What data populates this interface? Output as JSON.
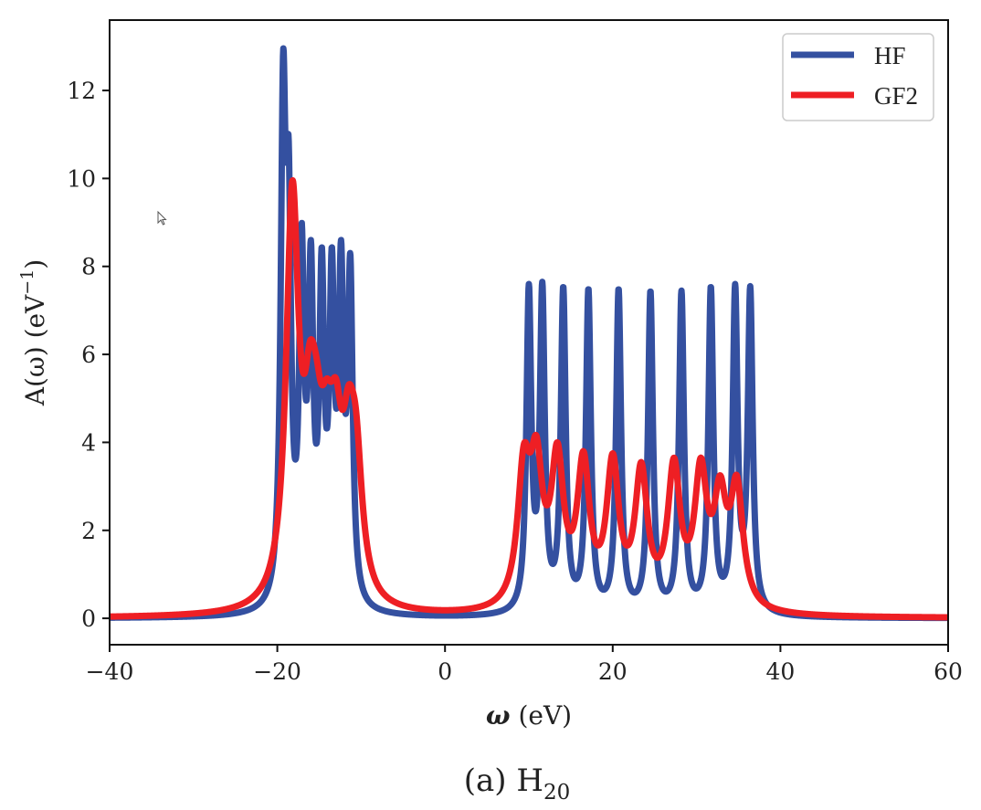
{
  "chart_data": {
    "type": "line",
    "title": "",
    "caption": {
      "prefix": "(a) H",
      "subscript": "20"
    },
    "xlabel": {
      "symbol": "ω",
      "unit": " (eV)"
    },
    "ylabel": {
      "text": "A(ω) (eV",
      "superscript": "−1",
      "close": ")"
    },
    "xlim": [
      -40,
      60
    ],
    "ylim": [
      -0.6,
      13.6
    ],
    "xticks": [
      -40,
      -20,
      0,
      20,
      40,
      60
    ],
    "xtick_labels": [
      "−40",
      "−20",
      "0",
      "20",
      "40",
      "60"
    ],
    "yticks": [
      0,
      2,
      4,
      6,
      8,
      10,
      12
    ],
    "ytick_labels": [
      "0",
      "2",
      "4",
      "6",
      "8",
      "10",
      "12"
    ],
    "grid": false,
    "legend_position": "top-right",
    "series": [
      {
        "name": "HF",
        "color": "#3450a0",
        "broadening_eV": 0.35,
        "peaks": [
          {
            "omega": -19.3,
            "height": 12.9
          },
          {
            "omega": -18.65,
            "height": 10.9
          },
          {
            "omega": -17.1,
            "height": 9.0
          },
          {
            "omega": -16.0,
            "height": 8.6
          },
          {
            "omega": -14.7,
            "height": 8.45
          },
          {
            "omega": -13.5,
            "height": 8.45
          },
          {
            "omega": -12.4,
            "height": 8.6
          },
          {
            "omega": -11.3,
            "height": 8.3
          },
          {
            "omega": 10.0,
            "height": 7.6
          },
          {
            "omega": 11.6,
            "height": 7.65
          },
          {
            "omega": 14.1,
            "height": 7.55
          },
          {
            "omega": 17.1,
            "height": 7.5
          },
          {
            "omega": 20.7,
            "height": 7.5
          },
          {
            "omega": 24.5,
            "height": 7.45
          },
          {
            "omega": 28.2,
            "height": 7.45
          },
          {
            "omega": 31.7,
            "height": 7.55
          },
          {
            "omega": 34.6,
            "height": 7.6
          },
          {
            "omega": 36.4,
            "height": 7.55
          }
        ]
      },
      {
        "name": "GF2",
        "color": "#ee1f24",
        "broadening_eV": 0.9,
        "peaks": [
          {
            "omega": -18.2,
            "height": 9.95
          },
          {
            "omega": -16.1,
            "height": 6.3
          },
          {
            "omega": -15.3,
            "height": 5.9
          },
          {
            "omega": -14.1,
            "height": 5.45
          },
          {
            "omega": -13.0,
            "height": 5.45
          },
          {
            "omega": -11.5,
            "height": 5.3
          },
          {
            "omega": -10.6,
            "height": 4.7
          },
          {
            "omega": 9.4,
            "height": 3.95
          },
          {
            "omega": 10.9,
            "height": 4.15
          },
          {
            "omega": 13.4,
            "height": 4.0
          },
          {
            "omega": 16.5,
            "height": 3.8
          },
          {
            "omega": 20.0,
            "height": 3.75
          },
          {
            "omega": 23.4,
            "height": 3.55
          },
          {
            "omega": 27.3,
            "height": 3.65
          },
          {
            "omega": 30.5,
            "height": 3.65
          },
          {
            "omega": 32.8,
            "height": 3.25
          },
          {
            "omega": 34.8,
            "height": 3.25
          }
        ]
      }
    ]
  }
}
